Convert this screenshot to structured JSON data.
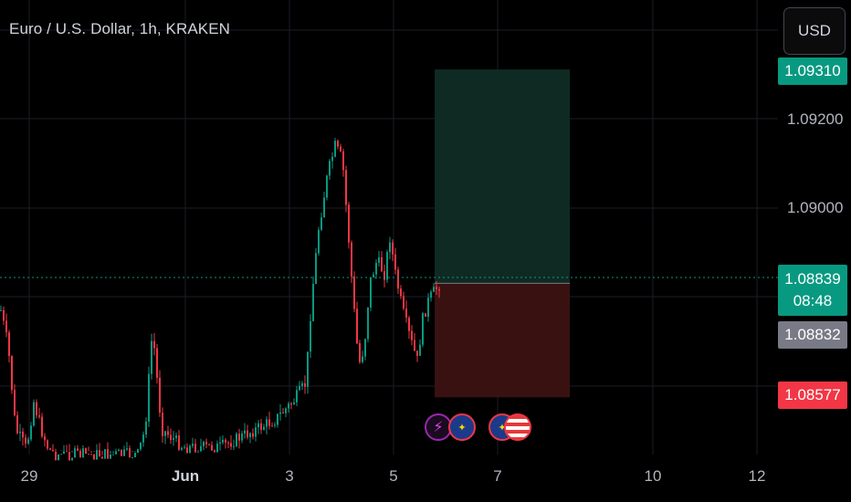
{
  "header": {
    "title": "Euro / U.S. Dollar, 1h, KRAKEN",
    "currency_button": "USD"
  },
  "price_axis": {
    "labels": [
      "1.09200",
      "1.09000"
    ],
    "tags": {
      "target": "1.09310",
      "current_price": "1.08839",
      "countdown": "08:48",
      "entry": "1.08832",
      "stop": "1.08577"
    }
  },
  "time_axis": {
    "labels": [
      "29",
      "Jun",
      "3",
      "5",
      "7",
      "10",
      "12"
    ]
  },
  "events": [
    {
      "icon": "lightning-icon"
    },
    {
      "icon": "eu-flag-icon"
    },
    {
      "icon": "eu-flag-icon"
    },
    {
      "icon": "us-flag-icon"
    }
  ],
  "position": {
    "type": "long",
    "target": 1.0931,
    "entry": 1.08832,
    "stop": 1.08577,
    "profit_color": "#0f2a22",
    "loss_color": "#3a1111"
  },
  "colors": {
    "up": "#089981",
    "down": "#f23645",
    "background": "#000000",
    "grid": "#1c1e26"
  }
}
